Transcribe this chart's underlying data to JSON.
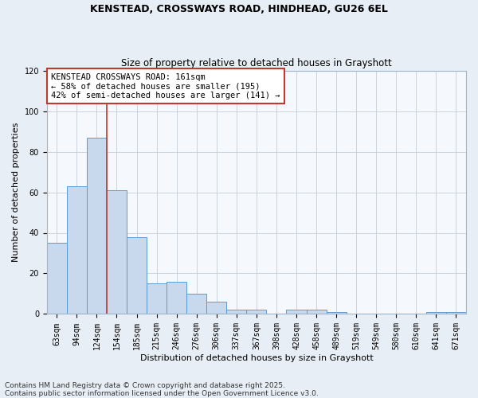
{
  "title_line1": "KENSTEAD, CROSSWAYS ROAD, HINDHEAD, GU26 6EL",
  "title_line2": "Size of property relative to detached houses in Grayshott",
  "xlabel": "Distribution of detached houses by size in Grayshott",
  "ylabel": "Number of detached properties",
  "categories": [
    "63sqm",
    "94sqm",
    "124sqm",
    "154sqm",
    "185sqm",
    "215sqm",
    "246sqm",
    "276sqm",
    "306sqm",
    "337sqm",
    "367sqm",
    "398sqm",
    "428sqm",
    "458sqm",
    "489sqm",
    "519sqm",
    "549sqm",
    "580sqm",
    "610sqm",
    "641sqm",
    "671sqm"
  ],
  "values": [
    35,
    63,
    87,
    61,
    38,
    15,
    16,
    10,
    6,
    2,
    2,
    0,
    2,
    2,
    1,
    0,
    0,
    0,
    0,
    1,
    1
  ],
  "bar_color": "#c8d9ee",
  "bar_edge_color": "#5b9bd5",
  "vline_x": 2.5,
  "vline_color": "#c0392b",
  "annotation_text_line1": "KENSTEAD CROSSWAYS ROAD: 161sqm",
  "annotation_text_line2": "← 58% of detached houses are smaller (195)",
  "annotation_text_line3": "42% of semi-detached houses are larger (141) →",
  "box_edge_color": "#c0392b",
  "ylim": [
    0,
    120
  ],
  "yticks": [
    0,
    20,
    40,
    60,
    80,
    100,
    120
  ],
  "footnote_line1": "Contains HM Land Registry data © Crown copyright and database right 2025.",
  "footnote_line2": "Contains public sector information licensed under the Open Government Licence v3.0.",
  "background_color": "#e8eef5",
  "plot_background_color": "#f5f8fc",
  "grid_color": "#c5cfd9",
  "title_fontsize": 9,
  "subtitle_fontsize": 8.5,
  "axis_label_fontsize": 8,
  "tick_fontsize": 7,
  "annotation_fontsize": 7.5,
  "footnote_fontsize": 6.5
}
